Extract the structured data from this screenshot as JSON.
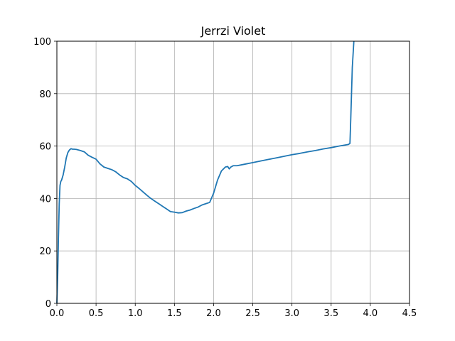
{
  "chart_data": {
    "type": "line",
    "title": "Jerrzi Violet",
    "xlabel": "",
    "ylabel": "",
    "xlim": [
      0.0,
      4.5
    ],
    "ylim": [
      0,
      100
    ],
    "grid": true,
    "x_ticks": [
      "0.0",
      "0.5",
      "1.0",
      "1.5",
      "2.0",
      "2.5",
      "3.0",
      "3.5",
      "4.0",
      "4.5"
    ],
    "y_ticks": [
      "0",
      "20",
      "40",
      "60",
      "80",
      "100"
    ],
    "colors": {
      "series": "#1f77b4",
      "grid": "#b0b0b0",
      "axes": "#000000"
    },
    "series": [
      {
        "x": [
          0.0,
          0.01,
          0.02,
          0.03,
          0.04,
          0.05,
          0.06,
          0.08,
          0.1,
          0.12,
          0.14,
          0.16,
          0.18,
          0.2,
          0.22,
          0.25,
          0.3,
          0.35,
          0.4,
          0.45,
          0.5,
          0.55,
          0.6,
          0.65,
          0.7,
          0.75,
          0.8,
          0.85,
          0.9,
          0.95,
          1.0,
          1.05,
          1.1,
          1.15,
          1.2,
          1.25,
          1.3,
          1.35,
          1.4,
          1.45,
          1.5,
          1.55,
          1.6,
          1.65,
          1.7,
          1.75,
          1.8,
          1.85,
          1.9,
          1.95,
          2.0,
          2.05,
          2.1,
          2.15,
          2.18,
          2.2,
          2.22,
          2.25,
          2.3,
          2.4,
          2.5,
          2.6,
          2.7,
          2.8,
          2.9,
          3.0,
          3.1,
          3.2,
          3.3,
          3.4,
          3.5,
          3.6,
          3.7,
          3.72,
          3.74,
          3.75,
          3.77,
          3.79
        ],
        "y": [
          0,
          10,
          25,
          38,
          45,
          46.5,
          47,
          49,
          52,
          55.5,
          57.5,
          58.5,
          59,
          58.8,
          58.8,
          58.7,
          58.3,
          57.8,
          56.5,
          55.7,
          55,
          53.2,
          52,
          51.5,
          51,
          50.2,
          49,
          48,
          47.5,
          46.5,
          45,
          43.8,
          42.5,
          41.2,
          40,
          39,
          38,
          37,
          36,
          35,
          34.8,
          34.5,
          34.6,
          35.2,
          35.6,
          36.2,
          36.7,
          37.5,
          38,
          38.5,
          42,
          47,
          50.5,
          52,
          52.2,
          51.3,
          52,
          52.5,
          52.5,
          53.1,
          53.7,
          54.3,
          54.9,
          55.5,
          56.1,
          56.7,
          57.2,
          57.8,
          58.3,
          58.9,
          59.4,
          60,
          60.5,
          60.6,
          61,
          70,
          90,
          100
        ]
      }
    ]
  }
}
